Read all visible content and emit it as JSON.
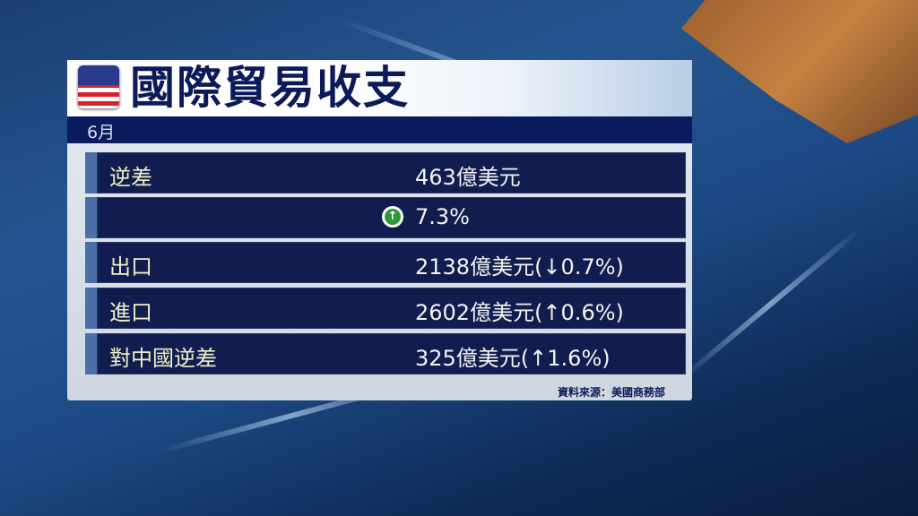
{
  "title": "國際貿易收支",
  "period": "6月",
  "flag_icon": "us-flag-icon",
  "rows": [
    {
      "label": "逆差",
      "value": "463億美元"
    },
    {
      "label": "",
      "value": "7.3%",
      "icon": "up-arrow-circle-icon"
    },
    {
      "label": "出口",
      "value": "2138億美元(↓0.7%)"
    },
    {
      "label": "進口",
      "value": "2602億美元(↑0.6%)"
    },
    {
      "label": "對中國逆差",
      "value": "325億美元(↑1.6%)"
    }
  ],
  "source": "資料來源：美國商務部",
  "colors": {
    "navy": "#0a1b5e",
    "row": "#111d4e",
    "up_green": "#2a9a3a"
  }
}
